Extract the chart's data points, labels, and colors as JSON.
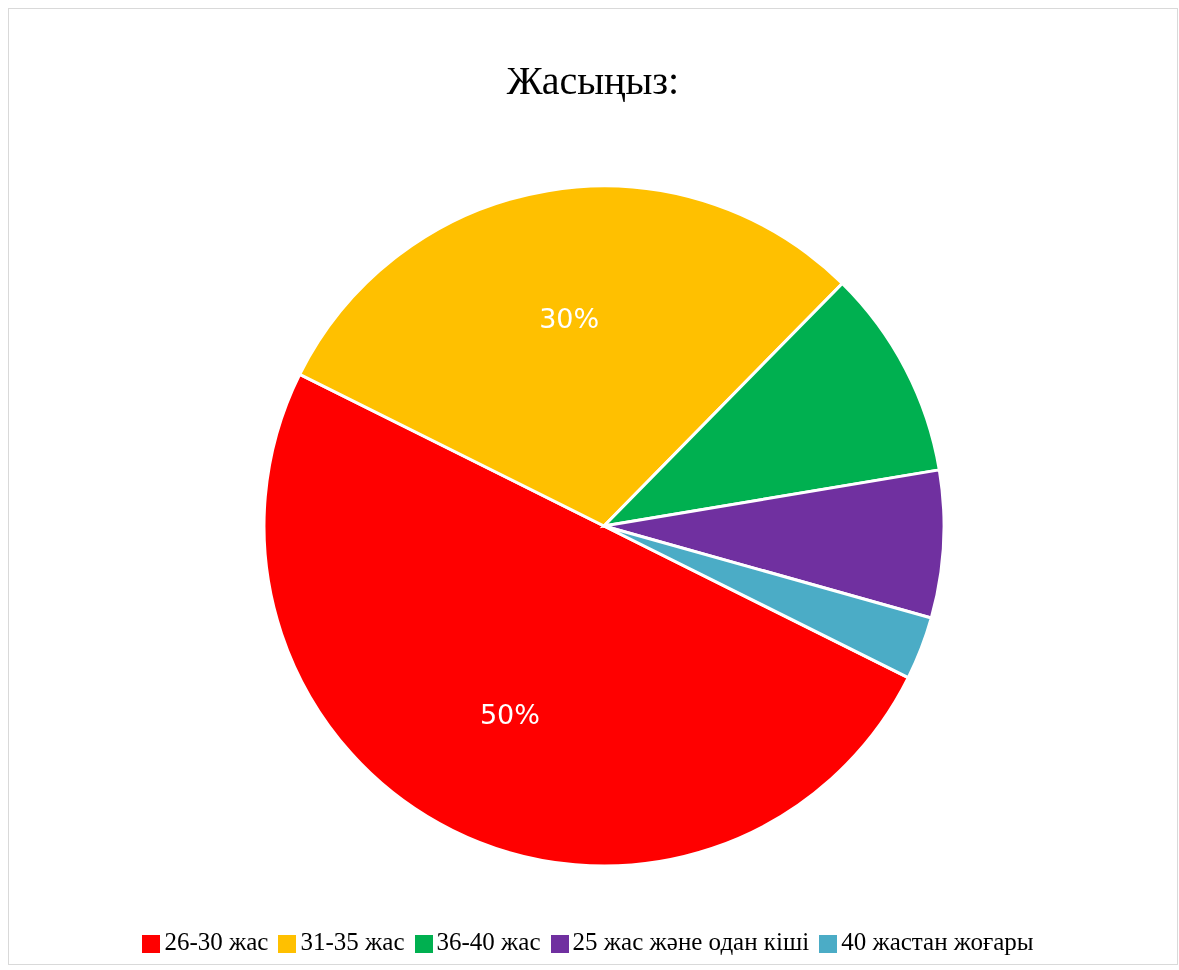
{
  "chart_data": {
    "type": "pie",
    "title": "Жасыңыз:",
    "categories": [
      "26-30 жас",
      "31-35 жас",
      "36-40 жас",
      "25 жас және одан кіші",
      "40 жастан жоғары"
    ],
    "values": [
      50,
      30,
      10,
      7,
      3
    ],
    "colors": [
      "#ff0000",
      "#ffc000",
      "#00b050",
      "#7030a0",
      "#4bacc6"
    ],
    "value_labels": [
      "50%",
      "30%",
      null,
      null,
      null
    ],
    "legend": "bottom"
  }
}
